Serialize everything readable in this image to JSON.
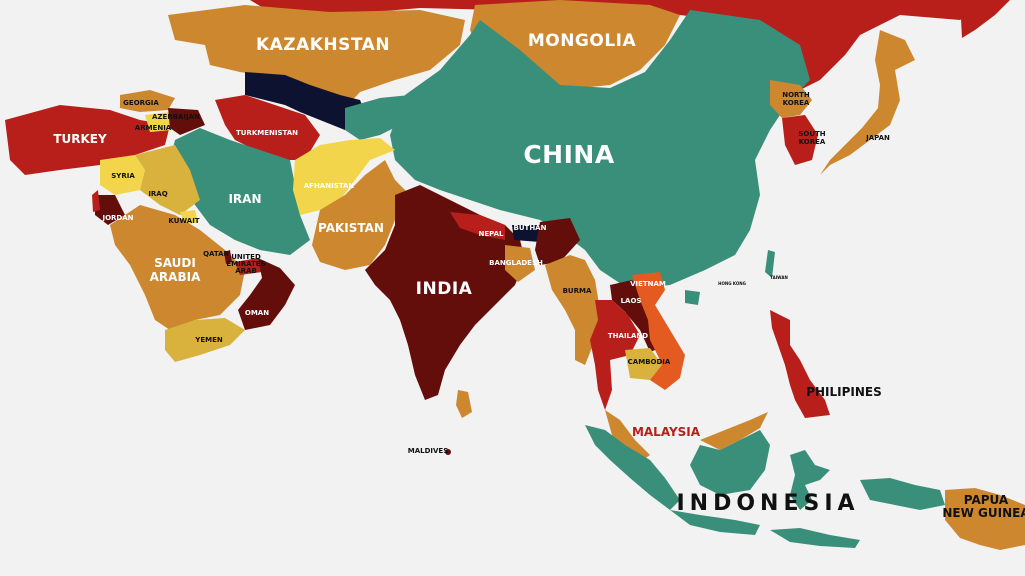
{
  "colors": {
    "background": "#f2f2f2",
    "teal": "#3a8f7a",
    "orange": "#cc872f",
    "red": "#b81f1a",
    "darkred": "#640e0c",
    "yellow": "#f2d54b",
    "olive": "#d8b23d",
    "navy": "#0d1230",
    "brightorange": "#e35b21"
  },
  "countries": {
    "kazakhstan": "KAZAKHSTAN",
    "mongolia": "MONGOLIA",
    "china": "CHINA",
    "india": "INDIA",
    "iran": "IRAN",
    "turkey": "TURKEY",
    "pakistan": "PAKISTAN",
    "afghanistan": "AFHANISTAN",
    "saudi_line1": "SAUDI",
    "saudi_line2": "ARABIA",
    "indonesia": "INDONESIA",
    "malaysia": "MALAYSIA",
    "philippines": "PHILIPINES",
    "papua_line1": "PAPUA",
    "papua_line2": "NEW GUINEA",
    "georgia": "GEORGIA",
    "armenia": "ARMENIA",
    "azerbaijan": "AZERBAIJAN",
    "turkmenistan": "TURKMENISTAN",
    "syria": "SYRIA",
    "iraq": "IRAQ",
    "jordan": "JORDAN",
    "kuwait": "KUWAIT",
    "qatar": "QATAR",
    "uae_line1": "UNITED",
    "uae_line2": "EMIRATES",
    "uae_line3": "ARAB",
    "oman": "OMAN",
    "yemen": "YEMEN",
    "nepal": "NEPAL",
    "bhutan": "BUTHAN",
    "bangladesh": "BANGLADESH",
    "burma": "BURMA",
    "laos": "LAOS",
    "vietnam": "VIETNAM",
    "thailand": "THAILAND",
    "cambodia": "CAMBODIA",
    "north_korea_line1": "NORTH",
    "north_korea_line2": "KOREA",
    "south_korea_line1": "SOUTH",
    "south_korea_line2": "KOREA",
    "japan": "JAPAN",
    "maldives": "MALDIVES",
    "taiwan": "TAIWAN",
    "hong_kong": "HONG KONG"
  }
}
